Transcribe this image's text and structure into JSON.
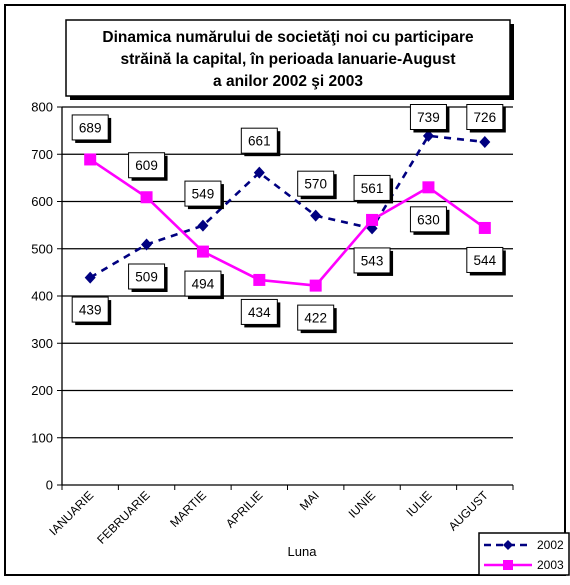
{
  "chart_data": {
    "type": "line",
    "title_lines": [
      "Dinamica numărului de societăţi noi cu participare",
      "străină la capital,  în perioada Ianuarie-August",
      "a anilor 2002 şi 2003"
    ],
    "xlabel": "Luna",
    "ylabel": "",
    "ylim": [
      0,
      800
    ],
    "yticks": [
      "0",
      "100",
      "200",
      "300",
      "400",
      "500",
      "600",
      "700",
      "800"
    ],
    "categories": [
      "IANUARIE",
      "FEBRUARIE",
      "MARTIE",
      "APRILIE",
      "MAI",
      "IUNIE",
      "IULIE",
      "AUGUST"
    ],
    "grid": true,
    "legend_position": "bottom-right",
    "series": [
      {
        "name": "2002",
        "values": [
          439,
          509,
          549,
          661,
          570,
          543,
          739,
          726
        ],
        "data_labels": [
          "439",
          "509",
          "549",
          "661",
          "570",
          "543",
          "739",
          "726"
        ],
        "color": "#000080",
        "line_style": "dashed",
        "marker": "diamond"
      },
      {
        "name": "2003",
        "values": [
          689,
          609,
          494,
          434,
          422,
          561,
          630,
          544
        ],
        "data_labels": [
          "689",
          "609",
          "494",
          "434",
          "422",
          "561",
          "630",
          "544"
        ],
        "color": "#ff00ff",
        "line_style": "solid",
        "marker": "square"
      }
    ]
  }
}
